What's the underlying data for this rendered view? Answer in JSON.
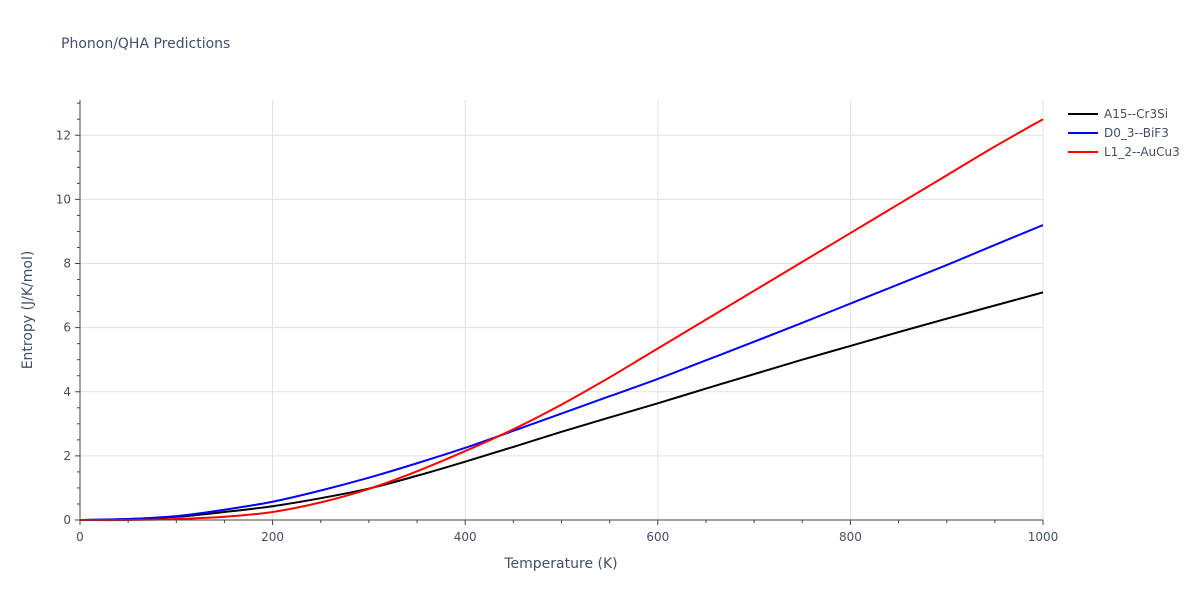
{
  "chart_data": {
    "type": "line",
    "title": "Phonon/QHA Predictions",
    "xlabel": "Temperature (K)",
    "ylabel": "Entropy (J/K/mol)",
    "xlim": [
      0,
      1000
    ],
    "ylim": [
      0,
      13.1
    ],
    "xticks": [
      0,
      200,
      400,
      600,
      800,
      1000
    ],
    "yticks": [
      0,
      2,
      4,
      6,
      8,
      10,
      12
    ],
    "xtick_labels": [
      "0",
      "200",
      "400",
      "600",
      "800",
      "1000"
    ],
    "ytick_labels": [
      "0",
      "2",
      "4",
      "6",
      "8",
      "10",
      "12"
    ],
    "grid": true,
    "legend_position": "top-right",
    "series": [
      {
        "name": "A15--Cr3Si",
        "color": "#000000",
        "x": [
          0,
          50,
          100,
          150,
          200,
          250,
          300,
          350,
          400,
          450,
          500,
          550,
          600,
          650,
          700,
          750,
          800,
          850,
          900,
          950,
          1000
        ],
        "y": [
          0,
          0.03,
          0.1,
          0.25,
          0.43,
          0.68,
          0.98,
          1.38,
          1.82,
          2.28,
          2.75,
          3.2,
          3.64,
          4.1,
          4.55,
          5.0,
          5.43,
          5.86,
          6.28,
          6.69,
          7.1
        ]
      },
      {
        "name": "D0_3--BiF3",
        "color": "#0000ff",
        "x": [
          0,
          50,
          100,
          150,
          200,
          250,
          300,
          350,
          400,
          450,
          500,
          550,
          600,
          650,
          700,
          750,
          800,
          850,
          900,
          950,
          1000
        ],
        "y": [
          0,
          0.03,
          0.12,
          0.32,
          0.57,
          0.92,
          1.32,
          1.77,
          2.25,
          2.78,
          3.32,
          3.86,
          4.4,
          4.98,
          5.56,
          6.15,
          6.75,
          7.35,
          7.95,
          8.58,
          9.2
        ]
      },
      {
        "name": "L1_2--AuCu3",
        "color": "#ff0000",
        "x": [
          0,
          50,
          100,
          150,
          200,
          250,
          300,
          350,
          400,
          450,
          500,
          550,
          600,
          650,
          700,
          750,
          800,
          850,
          900,
          950,
          1000
        ],
        "y": [
          0,
          0.0,
          0.03,
          0.1,
          0.25,
          0.55,
          0.97,
          1.52,
          2.15,
          2.83,
          3.6,
          4.45,
          5.35,
          6.25,
          7.15,
          8.05,
          8.95,
          9.85,
          10.75,
          11.65,
          12.5
        ]
      }
    ]
  }
}
